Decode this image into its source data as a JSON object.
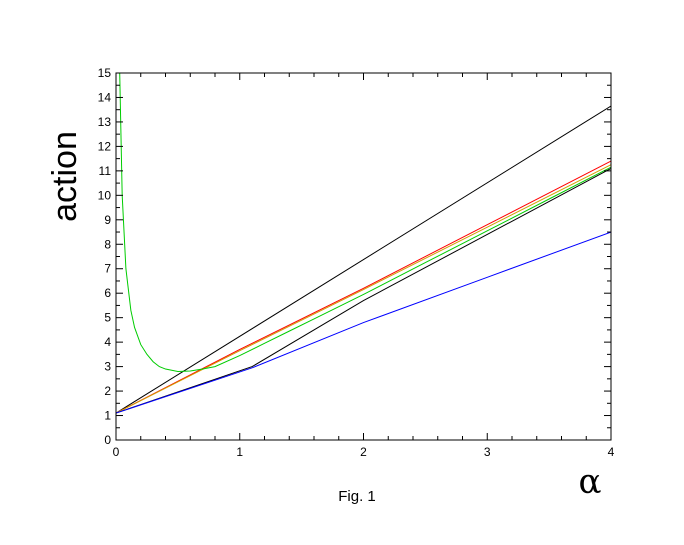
{
  "chart_data": {
    "type": "line",
    "title": "",
    "xlabel": "α",
    "ylabel": "action",
    "caption": "Fig. 1",
    "xlim": [
      0,
      4
    ],
    "ylim": [
      0,
      15
    ],
    "x_ticks": [
      0,
      1,
      2,
      3,
      4
    ],
    "x_tick_labels": [
      "0",
      "1",
      "2",
      "3",
      "4"
    ],
    "y_ticks": [
      0,
      1,
      2,
      3,
      4,
      5,
      6,
      7,
      8,
      9,
      10,
      11,
      12,
      13,
      14,
      15
    ],
    "y_tick_labels": [
      "0",
      "1",
      "2",
      "3",
      "4",
      "5",
      "6",
      "7",
      "8",
      "9",
      "10",
      "11",
      "12",
      "13",
      "14",
      "15"
    ],
    "grid": false,
    "legend": "none",
    "series": [
      {
        "color": "#000000",
        "x": [
          0,
          4
        ],
        "y": [
          1.1,
          13.65
        ]
      },
      {
        "color": "#ff0000",
        "x": [
          0,
          1,
          2,
          3,
          4
        ],
        "y": [
          1.1,
          3.7,
          6.2,
          8.8,
          11.4
        ]
      },
      {
        "color": "#d0a000",
        "x": [
          0,
          1,
          2,
          3,
          4
        ],
        "y": [
          1.1,
          3.65,
          6.15,
          8.7,
          11.25
        ]
      },
      {
        "color": "#000000",
        "x": [
          0,
          1.1,
          2,
          3,
          4
        ],
        "y": [
          1.1,
          3.0,
          5.7,
          8.4,
          11.1
        ]
      },
      {
        "color": "#0000ff",
        "x": [
          0,
          1.1,
          2,
          3,
          4
        ],
        "y": [
          1.1,
          2.95,
          4.8,
          6.65,
          8.5
        ]
      },
      {
        "color": "#00cc00",
        "x": [
          0.03,
          0.05,
          0.08,
          0.12,
          0.15,
          0.2,
          0.25,
          0.3,
          0.35,
          0.4,
          0.5,
          0.6,
          0.7,
          0.8,
          1.0,
          1.2,
          1.4,
          1.6,
          1.8,
          2.0,
          2.5,
          3.0,
          3.5,
          4.0
        ],
        "y": [
          15.0,
          10.0,
          7.0,
          5.3,
          4.6,
          3.9,
          3.5,
          3.2,
          3.0,
          2.9,
          2.8,
          2.82,
          2.9,
          3.0,
          3.45,
          3.95,
          4.45,
          4.95,
          5.45,
          5.95,
          7.25,
          8.55,
          9.85,
          11.15
        ]
      }
    ]
  }
}
